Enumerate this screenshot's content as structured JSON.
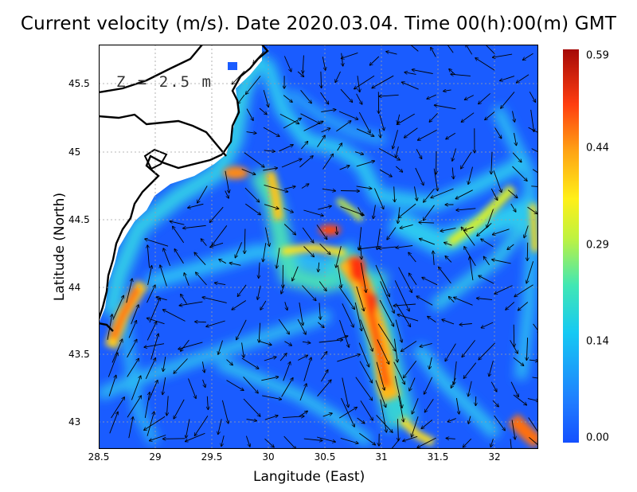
{
  "title": "Current velocity (m/s). Date 2020.03.04. Time 00(h):00(m) GMT",
  "depth_label": "Z = 2.5 m",
  "xlabel": "Langitude (East)",
  "ylabel": "Latitude (North)",
  "x_ticks": [
    "28.5",
    "29",
    "29.5",
    "30",
    "30.5",
    "31",
    "31.5",
    "32"
  ],
  "y_ticks": [
    "43",
    "43.5",
    "44",
    "44.5",
    "45",
    "45.5"
  ],
  "colorbar": {
    "labels": [
      "0.00",
      "0.14",
      "0.29",
      "0.44",
      "0.59"
    ],
    "min": 0.0,
    "max": 0.59,
    "palette": [
      "#1450ff",
      "#16c9f3",
      "#fff018",
      "#ff3e10",
      "#a50a08"
    ]
  },
  "map": {
    "lon_range": [
      28.5,
      32.4
    ],
    "lat_range": [
      42.8,
      45.8
    ],
    "grid": true,
    "land_color": "#ffffff",
    "sea_base_color": "#1a5cff"
  }
}
